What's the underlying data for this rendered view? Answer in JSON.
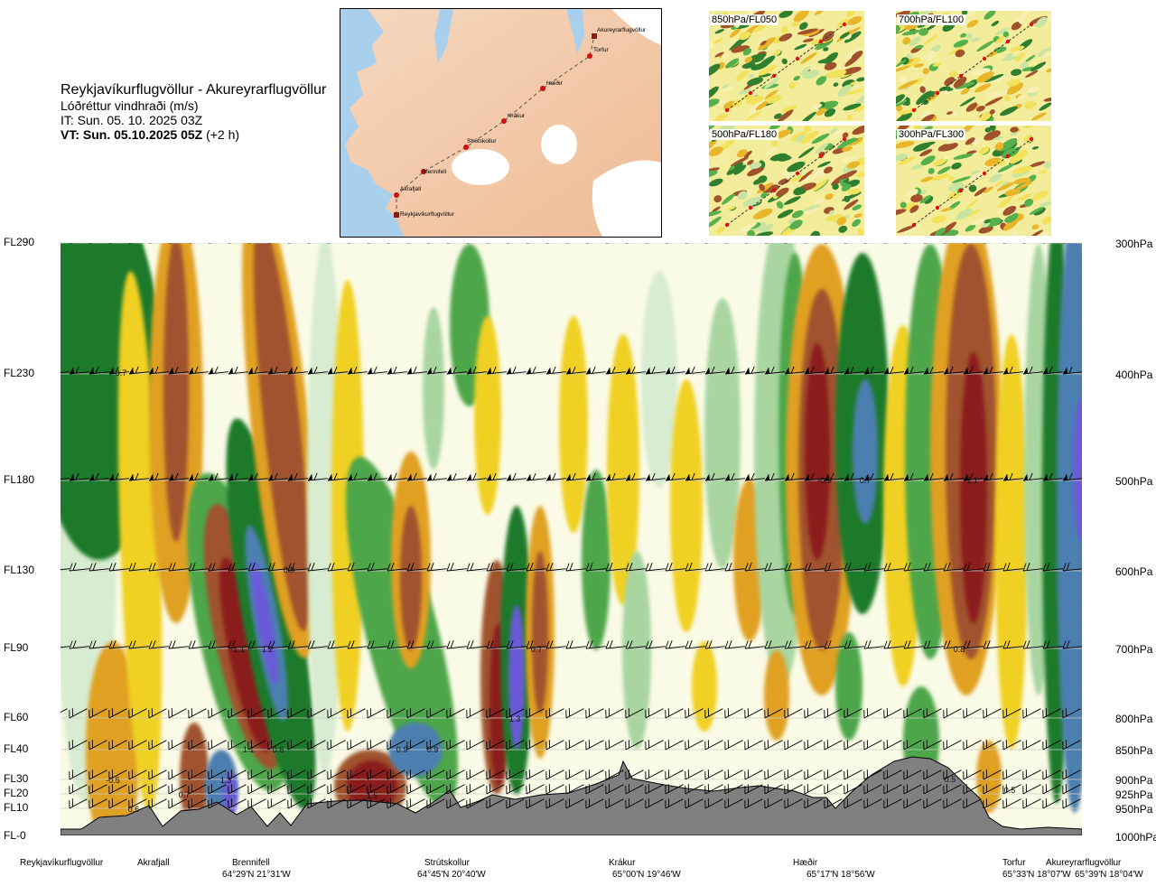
{
  "title": {
    "route": "Reykjavíkurflugvöllur - Akureyrarflugvöllur",
    "parameter": "Lóðréttur vindhraði (m/s)",
    "issue_time": "IT: Sun. 05. 10. 2025 03Z",
    "valid_time_bold": "VT: Sun. 05.10.2025 05Z",
    "valid_time_offset": " (+2 h)"
  },
  "map": {
    "waypoints": [
      "Akureyrarflugvöllur",
      "Torfur",
      "Hæðir",
      "Krákur",
      "Strútskollur",
      "Brennifell",
      "Akrafjall",
      "Reykjavíkurflugvöllur"
    ]
  },
  "thumbnails": [
    {
      "label": "850hPa/FL050"
    },
    {
      "label": "700hPa/FL100"
    },
    {
      "label": "500hPa/FL180"
    },
    {
      "label": "300hPa/FL300"
    }
  ],
  "levels": [
    {
      "fl": "FL290",
      "hpa": "300hPa"
    },
    {
      "fl": "FL230",
      "hpa": "400hPa"
    },
    {
      "fl": "FL180",
      "hpa": "500hPa"
    },
    {
      "fl": "FL130",
      "hpa": "600hPa"
    },
    {
      "fl": "FL90",
      "hpa": "700hPa"
    },
    {
      "fl": "FL60",
      "hpa": "800hPa"
    },
    {
      "fl": "FL40",
      "hpa": "850hPa"
    },
    {
      "fl": "FL30",
      "hpa": "900hPa"
    },
    {
      "fl": "FL20",
      "hpa": "925hPa"
    },
    {
      "fl": "FL10",
      "hpa": "950hPa"
    },
    {
      "fl": "FL-0",
      "hpa": "1000hPa"
    }
  ],
  "waypoints_axis": [
    {
      "name": "Reykjavíkurflugvöllur",
      "coord": ""
    },
    {
      "name": "Akrafjall",
      "coord": ""
    },
    {
      "name": "Brennifell",
      "coord": "64°29'N 21°31'W"
    },
    {
      "name": "Strútskollur",
      "coord": "64°45'N 20°40'W"
    },
    {
      "name": "Krákur",
      "coord": "65°00'N 19°46'W"
    },
    {
      "name": "Hæðir",
      "coord": "65°17'N 18°56'W"
    },
    {
      "name": "Torfur",
      "coord": "65°33'N 18°07'W"
    },
    {
      "name": "Akureyrarflugvöllur",
      "coord": "65°39'N 18°04'W"
    }
  ],
  "chart_data": {
    "type": "heatmap",
    "title": "Lóðréttur vindhraði (m/s)",
    "x_categories": [
      "Reykjavíkurflugvöllur",
      "Akrafjall",
      "Brennifell",
      "Strútskollur",
      "Krákur",
      "Hæðir",
      "Torfur",
      "Akureyrarflugvöllur"
    ],
    "y_levels_fl": [
      "FL-0",
      "FL10",
      "FL20",
      "FL30",
      "FL40",
      "FL60",
      "FL90",
      "FL130",
      "FL180",
      "FL230",
      "FL290"
    ],
    "y_levels_hpa": [
      "1000hPa",
      "950hPa",
      "925hPa",
      "900hPa",
      "850hPa",
      "800hPa",
      "700hPa",
      "600hPa",
      "500hPa",
      "400hPa",
      "300hPa"
    ],
    "colors": {
      "strong_down": "#8b1a1a",
      "down": "#a0522d",
      "moderate_down": "#e0a020",
      "weak_down": "#f0d020",
      "slight_down": "#f6ee9c",
      "neutral": "#fafbe6",
      "slight_up": "#d7ecd0",
      "weak_up": "#a8d5a0",
      "moderate_up": "#4ea64a",
      "up": "#1f7a2a",
      "strong_up": "#4c7fb0",
      "very_strong_up": "#6a5ad8",
      "terrain": "#808080"
    },
    "annotations": [
      {
        "text": "0.7",
        "at": "Reykjavíkurflugvöllur–Akrafjall, FL230"
      },
      {
        "text": "-0.5",
        "at": "Reykjavíkurflugvöllur, FL30"
      },
      {
        "text": "0.6",
        "at": "Akrafjall, FL10"
      },
      {
        "text": "0.7",
        "at": "Akrafjall, FL20"
      },
      {
        "text": "1.3",
        "at": "Brennifell, FL30"
      },
      {
        "text": "1.1",
        "at": "Brennifell, FL40"
      },
      {
        "text": "-1.1",
        "at": "Brennifell, FL90"
      },
      {
        "text": "1.2",
        "at": "Brennifell, FL90"
      },
      {
        "text": "0.9",
        "at": "Brennifell, FL130"
      },
      {
        "text": "0.6",
        "at": "Brennifell, FL40"
      },
      {
        "text": "1.5",
        "at": "Brennifell–Strútskollur, FL20"
      },
      {
        "text": "0.9",
        "at": "Strútskollur, FL40"
      },
      {
        "text": "0.9",
        "at": "Strútskollur, FL40"
      },
      {
        "text": "1.3",
        "at": "Strútskollur–Krákur, FL60"
      },
      {
        "text": "0.7",
        "at": "Strútskollur–Krákur, FL90"
      },
      {
        "text": "-0.9",
        "at": "Hæðir, FL180"
      },
      {
        "text": "0.7",
        "at": "Hæðir, FL180"
      },
      {
        "text": "0.8",
        "at": "Hæðir–Torfur, FL90"
      },
      {
        "text": "-1.1",
        "at": "Hæðir–Torfur, FL180"
      },
      {
        "text": "0.5",
        "at": "Torfur, FL30"
      },
      {
        "text": "0.5",
        "at": "Torfur, FL30"
      }
    ]
  }
}
